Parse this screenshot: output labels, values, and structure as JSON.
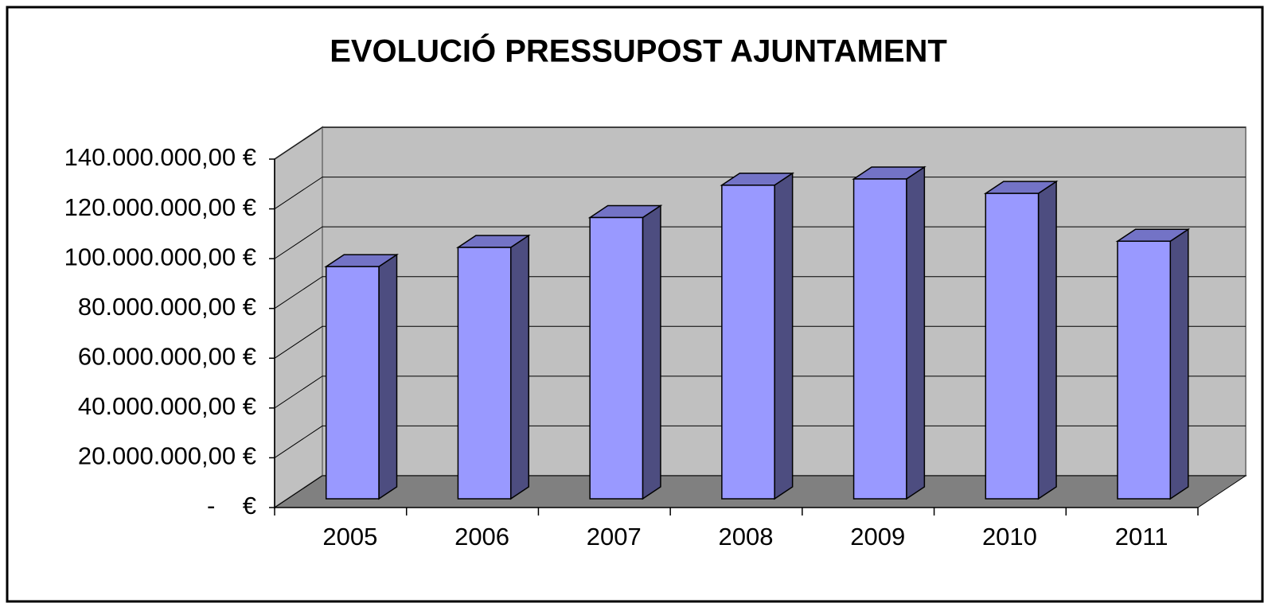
{
  "chart_data": {
    "type": "bar3d",
    "title": "EVOLUCIÓ PRESSUPOST AJUNTAMENT",
    "categories": [
      "2005",
      "2006",
      "2007",
      "2008",
      "2009",
      "2010",
      "2011"
    ],
    "values": [
      93300000,
      101000000,
      113000000,
      126000000,
      128500000,
      122700000,
      103500000
    ],
    "color": "#9999ff",
    "ylim": [
      0,
      140000000
    ],
    "yticks": [
      {
        "value": 0,
        "label": "-    €"
      },
      {
        "value": 20000000,
        "label": "20.000.000,00 €"
      },
      {
        "value": 40000000,
        "label": "40.000.000,00 €"
      },
      {
        "value": 60000000,
        "label": "60.000.000,00 €"
      },
      {
        "value": 80000000,
        "label": "80.000.000,00 €"
      },
      {
        "value": 100000000,
        "label": "100.000.000,00 €"
      },
      {
        "value": 120000000,
        "label": "120.000.000,00 €"
      },
      {
        "value": 140000000,
        "label": "140.000.000,00 €"
      }
    ],
    "grid": true
  }
}
